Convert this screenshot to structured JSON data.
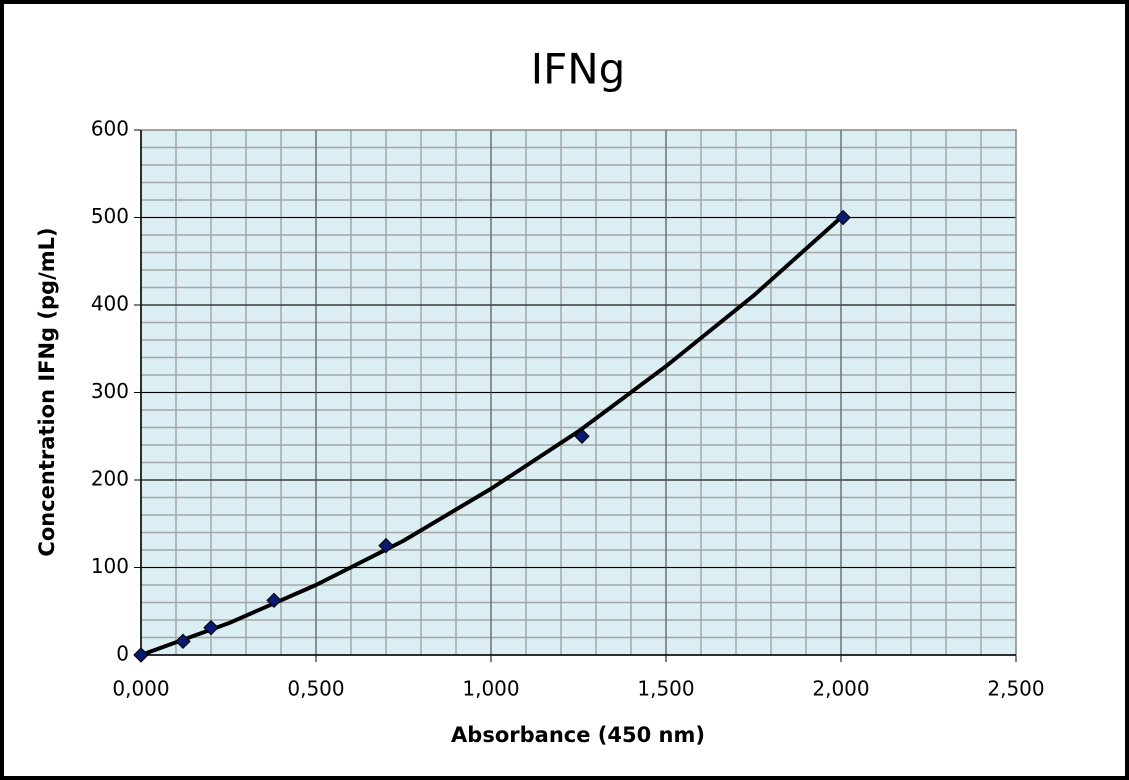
{
  "chart_data": {
    "type": "scatter",
    "title": "IFNg",
    "x_label": "Absorbance (450 nm)",
    "y_label": "Concentration IFNg (pg/mL)",
    "series": [
      {
        "color": "#0a1a6e",
        "x": [
          0.0,
          0.12,
          0.2,
          0.38,
          0.7,
          1.26,
          2.006
        ],
        "values": [
          0,
          15.6,
          31.25,
          62.5,
          125,
          250,
          500
        ]
      }
    ],
    "trendline": {
      "color": "#000000",
      "x": [
        0,
        0.25,
        0.5,
        0.75,
        1.0,
        1.25,
        1.5,
        1.75,
        2.0
      ],
      "y": [
        0,
        36.25,
        80,
        130.6,
        190,
        255.6,
        330,
        410.6,
        500
      ]
    },
    "xlim": [
      0,
      2.5
    ],
    "ylim": [
      0,
      600
    ],
    "xticks": [
      {
        "value": 0,
        "label": "0,000"
      },
      {
        "value": 0.5,
        "label": "0,500"
      },
      {
        "value": 1.0,
        "label": "1,000"
      },
      {
        "value": 1.5,
        "label": "1,500"
      },
      {
        "value": 2.0,
        "label": "2,000"
      },
      {
        "value": 2.5,
        "label": "2,500"
      }
    ],
    "yticks": [
      0,
      100,
      200,
      300,
      400,
      500,
      600
    ],
    "x_minor_step": 0.1,
    "y_minor_step": 20,
    "grid": true,
    "plot_background": "#dbeef3"
  }
}
